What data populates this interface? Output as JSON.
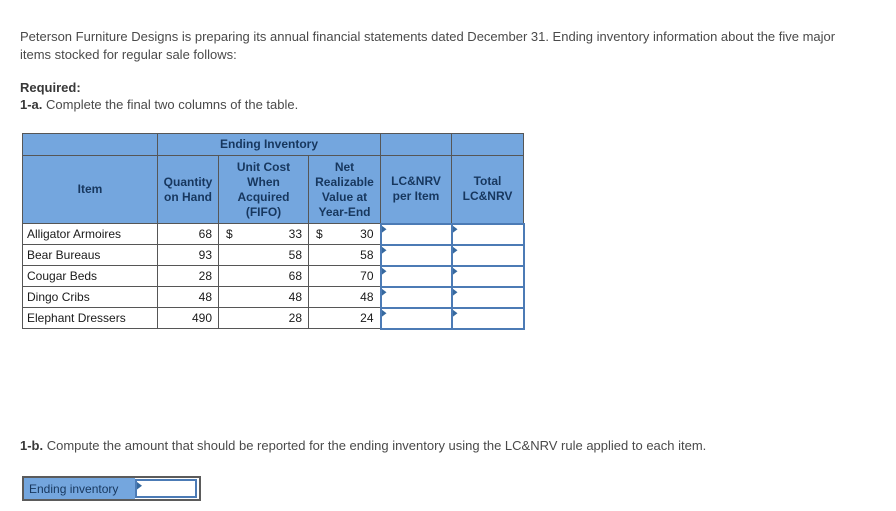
{
  "page": {
    "intro": "Peterson Furniture Designs is preparing its annual financial statements dated December 31. Ending inventory information about the five major items stocked for regular sale follows:",
    "required_label": "Required:",
    "task_1a": {
      "prefix": "1-a.",
      "text": " Complete the final two columns of the table."
    },
    "task_1b": {
      "prefix": "1-b.",
      "text": " Compute the amount that should be reported for the ending inventory using the LC&NRV rule applied to each item."
    }
  },
  "table": {
    "merged_header": "Ending Inventory",
    "columns": [
      "Item",
      "Quantity on Hand",
      "Unit Cost When Acquired (FIFO)",
      "Net Realizable Value at Year-End",
      "LC&NRV per Item",
      "Total LC&NRV"
    ],
    "rows": [
      {
        "item": "Alligator Armoires",
        "qty": "68",
        "cost_symbol": "$",
        "cost": "33",
        "nrv_symbol": "$",
        "nrv": "30",
        "lcnrv_per_item": "",
        "total_lcnrv": ""
      },
      {
        "item": "Bear Bureaus",
        "qty": "93",
        "cost_symbol": "",
        "cost": "58",
        "nrv_symbol": "",
        "nrv": "58",
        "lcnrv_per_item": "",
        "total_lcnrv": ""
      },
      {
        "item": "Cougar Beds",
        "qty": "28",
        "cost_symbol": "",
        "cost": "68",
        "nrv_symbol": "",
        "nrv": "70",
        "lcnrv_per_item": "",
        "total_lcnrv": ""
      },
      {
        "item": "Dingo Cribs",
        "qty": "48",
        "cost_symbol": "",
        "cost": "48",
        "nrv_symbol": "",
        "nrv": "48",
        "lcnrv_per_item": "",
        "total_lcnrv": ""
      },
      {
        "item": "Elephant Dressers",
        "qty": "490",
        "cost_symbol": "",
        "cost": "28",
        "nrv_symbol": "",
        "nrv": "24",
        "lcnrv_per_item": "",
        "total_lcnrv": ""
      }
    ]
  },
  "bottom": {
    "label": "Ending inventory",
    "value": ""
  },
  "colors": {
    "header_blue": "#74a6de",
    "header_text_navy": "#17375e",
    "input_border_blue": "#4c7bb5",
    "flag_blue": "#36699f",
    "table_border_gray": "#565656",
    "body_text_gray": "#4a4a4a"
  }
}
